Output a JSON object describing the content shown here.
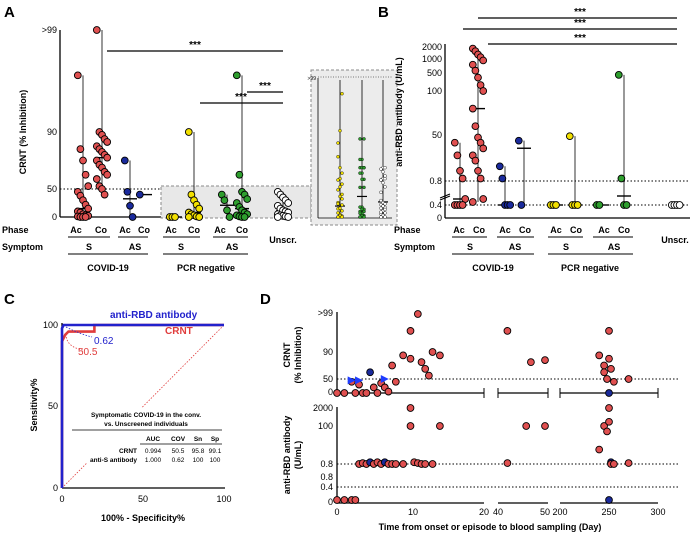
{
  "panel_labels": {
    "a": "A",
    "b": "B",
    "c": "C",
    "d": "D"
  },
  "row_labels": {
    "phase": "Phase",
    "symptom": "Symptom"
  },
  "group_labels": {
    "covid": "COVID-19",
    "pcr": "PCR negative",
    "unscr": "Unscr."
  },
  "phase_ticks": [
    "Ac",
    "Co",
    "Ac",
    "Co",
    "Ac",
    "Co",
    "Ac",
    "Co"
  ],
  "symptom_ticks": [
    "S",
    "AS",
    "S",
    "AS"
  ],
  "significance": "***",
  "colors": {
    "red": "#e05050",
    "navy": "#1a2a9c",
    "yellow": "#f2e000",
    "green": "#2e9e2e",
    "white": "#ffffff",
    "rbd_line": "#2222cc",
    "crnt_line": "#e03c3c",
    "inset_bg": "#e8e8e8",
    "inset_border": "#8a8a8a"
  },
  "chart_data": [
    {
      "id": "A",
      "type": "scatter",
      "ylabel": "CRNT (% Inhibition)",
      "yticks": [
        ">99",
        "90",
        "50",
        "0"
      ],
      "ylim": [
        0,
        100
      ],
      "threshold": 50,
      "series": [
        {
          "name": "COVID-19 S Ac",
          "color": "red",
          "values": [
            95,
            78,
            70,
            60,
            52,
            45,
            38,
            30,
            22,
            15,
            10,
            8,
            5,
            3,
            2,
            1,
            0,
            0,
            0
          ]
        },
        {
          "name": "COVID-19 S Co",
          "color": "red",
          "values": [
            99,
            90,
            88,
            85,
            83,
            80,
            78,
            76,
            74,
            72,
            70,
            67,
            65,
            62,
            60,
            57,
            52,
            50,
            40
          ]
        },
        {
          "name": "COVID-19 AS Ac",
          "color": "navy",
          "values": [
            70,
            45,
            20,
            0
          ]
        },
        {
          "name": "COVID-19 AS Co",
          "color": "navy",
          "values": [
            40
          ]
        },
        {
          "name": "PCR negative S Ac",
          "color": "yellow",
          "values": [
            0,
            0,
            0
          ]
        },
        {
          "name": "PCR negative S Co",
          "color": "yellow",
          "values": [
            90,
            40,
            30,
            22,
            15,
            8,
            5,
            3,
            1,
            0,
            0
          ]
        },
        {
          "name": "PCR negative AS Ac",
          "color": "green",
          "values": [
            40,
            30,
            12,
            0
          ]
        },
        {
          "name": "PCR negative AS Co",
          "color": "green",
          "values": [
            95,
            60,
            45,
            40,
            32,
            25,
            18,
            12,
            8,
            5,
            3,
            1,
            0,
            0
          ]
        },
        {
          "name": "Unscreened",
          "color": "white",
          "values": [
            45,
            40,
            35,
            30,
            25,
            20,
            15,
            12,
            10,
            8,
            5,
            3,
            2,
            1,
            0,
            0
          ]
        }
      ],
      "brackets": [
        {
          "from": "COVID-19 S Co",
          "to": "Unscreened",
          "label": "***"
        },
        {
          "from": "PCR negative S Co",
          "to": "Unscreened",
          "label": "***"
        },
        {
          "from": "PCR negative AS Co",
          "to": "Unscreened",
          "label": "***"
        }
      ],
      "inset": {
        "ytick": ">99",
        "series": [
          "yellow",
          "green",
          "white"
        ]
      }
    },
    {
      "id": "B",
      "type": "scatter",
      "ylabel": "anti-RBD antibody (U/mL)",
      "yticks": [
        "2000",
        "1000",
        "500",
        "100",
        "50",
        "0.8",
        "0.4",
        "0"
      ],
      "threshold": 0.8,
      "series": [
        {
          "name": "COVID-19 S Ac",
          "color": "red",
          "values": [
            25,
            8,
            2,
            1,
            0.6,
            0.4,
            0.4,
            0.4,
            0.4
          ]
        },
        {
          "name": "COVID-19 S Co",
          "color": "red",
          "values": [
            1800,
            1500,
            1200,
            1000,
            800,
            600,
            400,
            250,
            150,
            100,
            80,
            60,
            40,
            25,
            15,
            8,
            5,
            2,
            1,
            0.6,
            0.5
          ]
        },
        {
          "name": "COVID-19 AS Ac",
          "color": "navy",
          "values": [
            3,
            1,
            0.4,
            0.4,
            0.4
          ]
        },
        {
          "name": "COVID-19 AS Co",
          "color": "navy",
          "values": [
            30,
            0.4
          ]
        },
        {
          "name": "PCR negative S Ac",
          "color": "yellow",
          "values": [
            0.4,
            0.4,
            0.4
          ]
        },
        {
          "name": "PCR negative S Co",
          "color": "yellow",
          "values": [
            45,
            0.4,
            0.4,
            0.4
          ]
        },
        {
          "name": "PCR negative AS Ac",
          "color": "green",
          "values": [
            0.4,
            0.4
          ]
        },
        {
          "name": "PCR negative AS Co",
          "color": "green",
          "values": [
            300,
            1,
            0.4,
            0.4
          ]
        },
        {
          "name": "Unscreened",
          "color": "white",
          "values": [
            0.4,
            0.4,
            0.4,
            0.4
          ]
        }
      ],
      "brackets": [
        {
          "from": "COVID-19 S Ac",
          "to": "Unscreened",
          "label": "***"
        },
        {
          "from": "COVID-19 S Co",
          "to": "Unscreened",
          "label": "***"
        },
        {
          "from": "COVID-19 AS Ac",
          "to": "Unscreened",
          "label": "***"
        }
      ]
    },
    {
      "id": "C",
      "type": "line",
      "xlabel": "100% - Specificity%",
      "ylabel": "Sensitivity%",
      "xlim": [
        0,
        100
      ],
      "ylim": [
        0,
        100
      ],
      "xticks": [
        "0",
        "50",
        "100"
      ],
      "yticks": [
        "0",
        "50",
        "100"
      ],
      "series": [
        {
          "name": "anti-RBD antibody",
          "color": "rbd_line",
          "x": [
            0,
            0,
            0.5,
            1,
            100
          ],
          "y": [
            0,
            98,
            99,
            100,
            100
          ],
          "cutoff_label": "0.62"
        },
        {
          "name": "CRNT",
          "color": "crnt_line",
          "x": [
            0,
            0,
            2,
            4,
            7,
            10,
            20,
            20,
            100
          ],
          "y": [
            0,
            90,
            94,
            96,
            96,
            96,
            96,
            100,
            100
          ],
          "cutoff_label": "50.5"
        }
      ],
      "table": {
        "title": [
          "Symptomatic COVID-19 in the conv.",
          "vs. Unscreened individuals"
        ],
        "headers": [
          "",
          "AUC",
          "COV",
          "Sn",
          "Sp"
        ],
        "rows": [
          [
            "CRNT",
            "0.994",
            "50.5",
            "95.8",
            "99.1"
          ],
          [
            "anti-S antibody",
            "1.000",
            "0.62",
            "100",
            "100"
          ]
        ]
      }
    },
    {
      "id": "D",
      "type": "scatter",
      "xlabel": "Time from onset or episode to blood sampling (Day)",
      "xticks": [
        "0",
        "10",
        "20",
        "40",
        "50",
        "200",
        "250",
        "300"
      ],
      "top": {
        "ylabel": "CRNT (% Inhibition)",
        "yticks": [
          ">99",
          "90",
          "50",
          "0"
        ],
        "threshold": 50,
        "points": [
          {
            "day": 0,
            "v": 0,
            "c": "red"
          },
          {
            "day": 1,
            "v": 0,
            "c": "red"
          },
          {
            "day": 2,
            "v": 40,
            "c": "red"
          },
          {
            "day": 2.5,
            "v": 0,
            "c": "red"
          },
          {
            "day": 3,
            "v": 30,
            "c": "red"
          },
          {
            "day": 3.5,
            "v": 0,
            "c": "red"
          },
          {
            "day": 4,
            "v": 0,
            "c": "red"
          },
          {
            "day": 4.5,
            "v": 60,
            "c": "navy"
          },
          {
            "day": 5,
            "v": 20,
            "c": "red"
          },
          {
            "day": 5.5,
            "v": 0,
            "c": "red"
          },
          {
            "day": 6,
            "v": 35,
            "c": "red"
          },
          {
            "day": 6.5,
            "v": 20,
            "c": "red"
          },
          {
            "day": 7,
            "v": 5,
            "c": "red"
          },
          {
            "day": 7.5,
            "v": 70,
            "c": "red"
          },
          {
            "day": 8,
            "v": 40,
            "c": "red"
          },
          {
            "day": 9,
            "v": 85,
            "c": "red"
          },
          {
            "day": 10,
            "v": 95,
            "c": "red"
          },
          {
            "day": 10,
            "v": 80,
            "c": "red"
          },
          {
            "day": 11,
            "v": 99,
            "c": "red"
          },
          {
            "day": 11.5,
            "v": 75,
            "c": "red"
          },
          {
            "day": 12,
            "v": 65,
            "c": "red"
          },
          {
            "day": 12.5,
            "v": 55,
            "c": "red"
          },
          {
            "day": 13,
            "v": 90,
            "c": "red"
          },
          {
            "day": 14,
            "v": 85,
            "c": "red"
          },
          {
            "day": 42,
            "v": 95,
            "c": "red"
          },
          {
            "day": 47,
            "v": 75,
            "c": "red"
          },
          {
            "day": 50,
            "v": 78,
            "c": "red"
          },
          {
            "day": 240,
            "v": 85,
            "c": "red"
          },
          {
            "day": 245,
            "v": 70,
            "c": "red"
          },
          {
            "day": 245,
            "v": 60,
            "c": "red"
          },
          {
            "day": 248,
            "v": 50,
            "c": "red"
          },
          {
            "day": 250,
            "v": 95,
            "c": "red"
          },
          {
            "day": 250,
            "v": 80,
            "c": "red"
          },
          {
            "day": 252,
            "v": 65,
            "c": "red"
          },
          {
            "day": 255,
            "v": 40,
            "c": "red"
          },
          {
            "day": 250,
            "v": 0,
            "c": "navy"
          },
          {
            "day": 270,
            "v": 50,
            "c": "red"
          }
        ],
        "arrows": [
          {
            "day": 2,
            "v": 45
          },
          {
            "day": 3,
            "v": 45
          },
          {
            "day": 6.5,
            "v": 50
          }
        ]
      },
      "bottom": {
        "ylabel": "anti-RBD antibody (U/mL)",
        "yticks": [
          "2000",
          "100",
          "0.8",
          "0.8",
          "0.4",
          "0"
        ],
        "threshold": 0.8,
        "points": [
          {
            "day": 0,
            "v": 0,
            "c": "red"
          },
          {
            "day": 1,
            "v": 0,
            "c": "red"
          },
          {
            "day": 2,
            "v": 0,
            "c": "red"
          },
          {
            "day": 2.5,
            "v": 0,
            "c": "red"
          },
          {
            "day": 3,
            "v": 0.8,
            "c": "red"
          },
          {
            "day": 3.5,
            "v": 0.9,
            "c": "red"
          },
          {
            "day": 4,
            "v": 0.8,
            "c": "red"
          },
          {
            "day": 4.5,
            "v": 1,
            "c": "navy"
          },
          {
            "day": 5,
            "v": 0.8,
            "c": "red"
          },
          {
            "day": 5.5,
            "v": 1,
            "c": "red"
          },
          {
            "day": 6,
            "v": 0.8,
            "c": "red"
          },
          {
            "day": 6.5,
            "v": 1,
            "c": "navy"
          },
          {
            "day": 7,
            "v": 0.8,
            "c": "red"
          },
          {
            "day": 7.5,
            "v": 0.8,
            "c": "red"
          },
          {
            "day": 8,
            "v": 0.8,
            "c": "red"
          },
          {
            "day": 9,
            "v": 0.8,
            "c": "red"
          },
          {
            "day": 10,
            "v": 2000,
            "c": "red"
          },
          {
            "day": 10,
            "v": 100,
            "c": "red"
          },
          {
            "day": 10.5,
            "v": 1,
            "c": "red"
          },
          {
            "day": 11,
            "v": 0.9,
            "c": "red"
          },
          {
            "day": 11.5,
            "v": 0.8,
            "c": "red"
          },
          {
            "day": 12,
            "v": 0.8,
            "c": "red"
          },
          {
            "day": 13,
            "v": 0.8,
            "c": "red"
          },
          {
            "day": 14,
            "v": 100,
            "c": "red"
          },
          {
            "day": 42,
            "v": 0.9,
            "c": "red"
          },
          {
            "day": 46,
            "v": 100,
            "c": "red"
          },
          {
            "day": 50,
            "v": 100,
            "c": "red"
          },
          {
            "day": 240,
            "v": 5,
            "c": "red"
          },
          {
            "day": 245,
            "v": 100,
            "c": "red"
          },
          {
            "day": 248,
            "v": 50,
            "c": "red"
          },
          {
            "day": 250,
            "v": 2000,
            "c": "red"
          },
          {
            "day": 250,
            "v": 200,
            "c": "red"
          },
          {
            "day": 252,
            "v": 1,
            "c": "navy"
          },
          {
            "day": 252,
            "v": 0.8,
            "c": "red"
          },
          {
            "day": 255,
            "v": 0.8,
            "c": "red"
          },
          {
            "day": 250,
            "v": 0,
            "c": "navy"
          },
          {
            "day": 270,
            "v": 0.9,
            "c": "red"
          }
        ]
      }
    }
  ]
}
